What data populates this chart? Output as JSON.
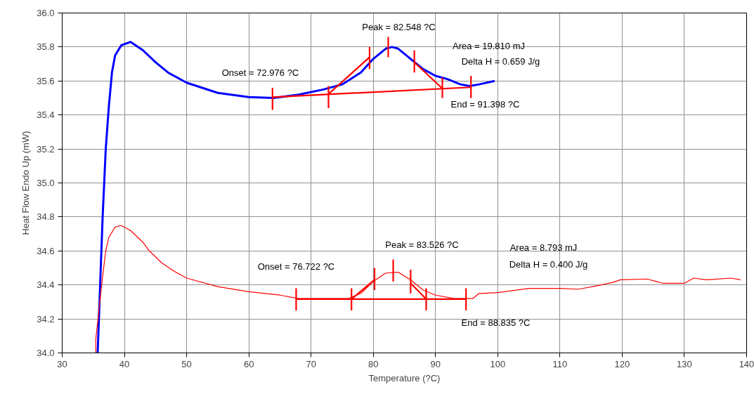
{
  "chart_data": {
    "type": "line",
    "xlabel": "Temperature (?C)",
    "ylabel": "Heat Flow Endo Up (mW)",
    "xlim": [
      30,
      140
    ],
    "xticks": [
      30,
      40,
      50,
      60,
      70,
      80,
      90,
      100,
      110,
      120,
      130,
      140
    ],
    "ylim": [
      34.0,
      36.0
    ],
    "yticks": [
      {
        "value": 34.0,
        "label": "34.0"
      },
      {
        "value": 34.2,
        "label": "34.2"
      },
      {
        "value": 34.4,
        "label": "34.4"
      },
      {
        "value": 34.6,
        "label": "34.6"
      },
      {
        "value": 34.8,
        "label": "34.8"
      },
      {
        "value": 35.0,
        "label": "35.0"
      },
      {
        "value": 35.2,
        "label": "35.2"
      },
      {
        "value": 35.4,
        "label": "35.4"
      },
      {
        "value": 35.6,
        "label": "35.6"
      },
      {
        "value": 35.8,
        "label": "35.8"
      },
      {
        "value": 36.0,
        "label": "36.0"
      }
    ],
    "grid": true,
    "line_style": "solid",
    "marker": "none",
    "series": [
      {
        "color": "#0000ff",
        "x": [
          35.7,
          36.0,
          36.5,
          37,
          37.5,
          38,
          38.5,
          39.5,
          41,
          43,
          45,
          47,
          50,
          55,
          60,
          64,
          68,
          72,
          75,
          78,
          80,
          82,
          83,
          84,
          86,
          88,
          90,
          92,
          94,
          95.5,
          97,
          99.5
        ],
        "values": [
          34.0,
          34.3,
          34.8,
          35.2,
          35.45,
          35.65,
          35.75,
          35.81,
          35.83,
          35.78,
          35.71,
          35.65,
          35.59,
          35.53,
          35.505,
          35.5,
          35.52,
          35.55,
          35.58,
          35.65,
          35.73,
          35.79,
          35.8,
          35.79,
          35.73,
          35.67,
          35.63,
          35.61,
          35.58,
          35.57,
          35.58,
          35.6
        ]
      },
      {
        "color": "#ff0000",
        "x": [
          35.4,
          35.4,
          36.1,
          36.5,
          37,
          37.5,
          38.5,
          39.5,
          41,
          43,
          44,
          46,
          48,
          50,
          55,
          60,
          65,
          68,
          72,
          76,
          78,
          80,
          82,
          84,
          86,
          88,
          90,
          93,
          95.5,
          96,
          97,
          100,
          105,
          110,
          113,
          116,
          118.5,
          119.7,
          124,
          125.5,
          126.5,
          130,
          131.5,
          133.5,
          137.5,
          139
        ],
        "values": [
          34.0,
          34.08,
          34.32,
          34.45,
          34.6,
          34.68,
          34.74,
          34.75,
          34.72,
          34.65,
          34.6,
          34.53,
          34.48,
          34.44,
          34.39,
          34.36,
          34.34,
          34.32,
          34.32,
          34.32,
          34.35,
          34.42,
          34.47,
          34.475,
          34.43,
          34.37,
          34.34,
          34.32,
          34.32,
          34.32,
          34.35,
          34.355,
          34.38,
          34.38,
          34.375,
          34.395,
          34.415,
          34.43,
          34.435,
          34.42,
          34.41,
          34.41,
          34.44,
          34.43,
          34.44,
          34.43
        ]
      },
      {
        "color": "#ff0000",
        "x": [
          63.8,
          95.7,
          null,
          72.8,
          79.4,
          null,
          86.6,
          91.1
        ],
        "values": [
          35.505,
          35.563,
          null,
          35.523,
          35.74,
          null,
          35.71,
          35.556
        ]
      },
      {
        "color": "#ff0000",
        "x": [
          63.8,
          63.8,
          null,
          72.8,
          72.8,
          null,
          79.4,
          79.4,
          null,
          82.4,
          82.4,
          null,
          86.6,
          86.6,
          null,
          91.1,
          91.1,
          null,
          95.7,
          95.7
        ],
        "values": [
          35.43,
          35.56,
          null,
          35.44,
          35.57,
          null,
          35.67,
          35.8,
          null,
          35.74,
          35.86,
          null,
          35.65,
          35.78,
          null,
          35.5,
          35.62,
          null,
          35.5,
          35.63
        ]
      },
      {
        "color": "#ff0000",
        "x": [
          67.6,
          95,
          null,
          76.5,
          80.2,
          null,
          86.0,
          88.5
        ],
        "values": [
          34.317,
          34.317,
          null,
          34.317,
          34.43,
          null,
          34.41,
          34.317
        ]
      },
      {
        "color": "#ff0000",
        "x": [
          67.6,
          67.6,
          null,
          76.5,
          76.5,
          null,
          80.2,
          80.2,
          null,
          83.2,
          83.2,
          null,
          86.0,
          86.0,
          null,
          88.5,
          88.5,
          null,
          94.9,
          94.9
        ],
        "values": [
          34.25,
          34.38,
          null,
          34.25,
          34.38,
          null,
          34.37,
          34.5,
          null,
          34.42,
          34.55,
          null,
          34.35,
          34.49,
          null,
          34.25,
          34.38,
          null,
          34.25,
          34.38
        ]
      }
    ],
    "annotations": [
      "Onset = 72.976 ?C",
      "Peak = 82.548 ?C",
      "Area = 19.810 mJ",
      "Delta H = 0.659 J/g",
      "End = 91.398 ?C",
      "Onset = 76.722 ?C",
      "Peak = 83.526 ?C",
      "Area = 8.793 mJ",
      "Delta H = 0.400 J/g",
      "End = 88.835 ?C"
    ]
  }
}
